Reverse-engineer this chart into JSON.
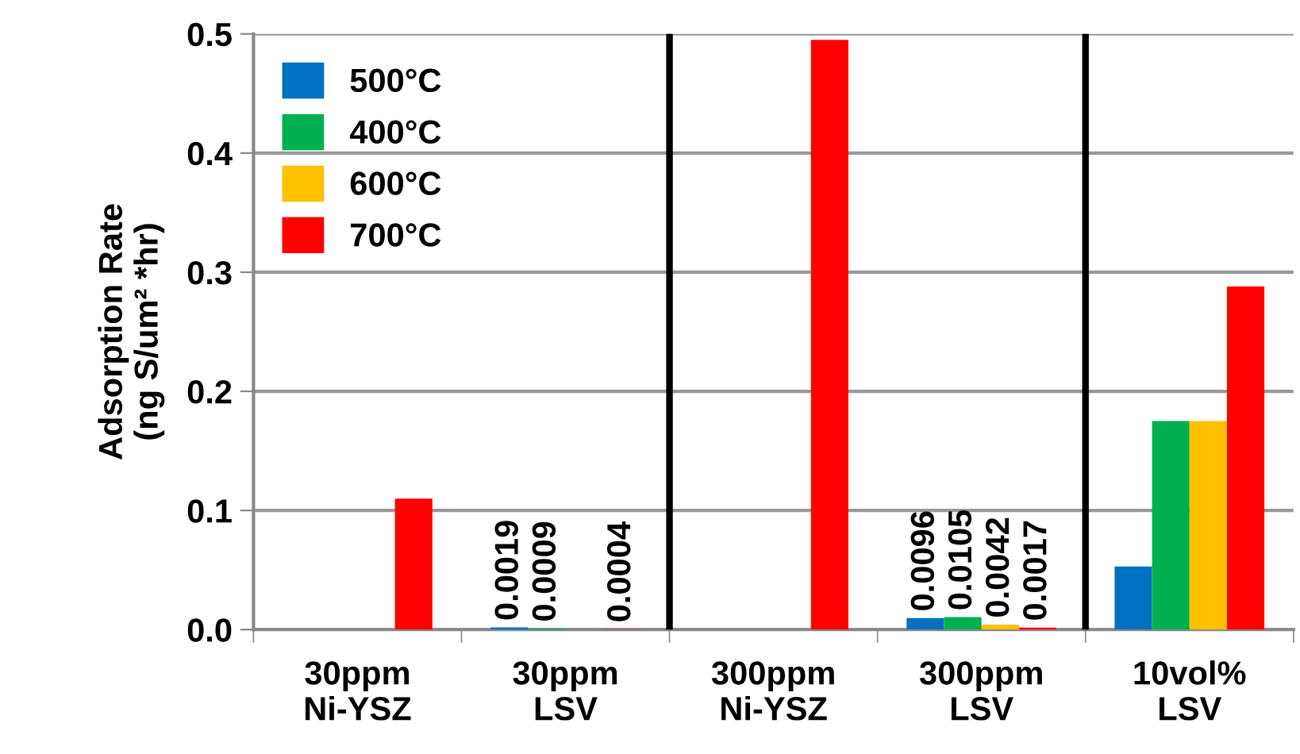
{
  "chart_data": {
    "type": "bar",
    "ylabel": "Adsorption Rate\n(ng S/um² *hr)",
    "categories": [
      "30ppm\nNi-YSZ",
      "30ppm\nLSV",
      "300ppm\nNi-YSZ",
      "300ppm\nLSV",
      "10vol%\nLSV"
    ],
    "series": [
      {
        "name": "500°C",
        "color": "#0070c0",
        "values": [
          null,
          0.0019,
          null,
          0.0096,
          0.053
        ],
        "value_labels": [
          null,
          "0.0019",
          null,
          "0.0096",
          null
        ]
      },
      {
        "name": "400°C",
        "color": "#00b050",
        "values": [
          null,
          0.0009,
          null,
          0.0105,
          0.175
        ],
        "value_labels": [
          null,
          "0.0009",
          null,
          "0.0105",
          null
        ]
      },
      {
        "name": "600°C",
        "color": "#ffc000",
        "values": [
          null,
          null,
          null,
          0.0042,
          0.175
        ],
        "value_labels": [
          null,
          null,
          null,
          "0.0042",
          null
        ]
      },
      {
        "name": "700°C",
        "color": "#ff0000",
        "values": [
          0.11,
          0.0004,
          0.495,
          0.0017,
          0.288
        ],
        "value_labels": [
          null,
          "0.0004",
          null,
          "0.0017",
          null
        ]
      }
    ],
    "ylim": [
      0,
      0.5
    ],
    "yticks": [
      "0.0",
      "0.1",
      "0.2",
      "0.3",
      "0.4",
      "0.5"
    ],
    "grid": "y",
    "legend": "top left"
  }
}
